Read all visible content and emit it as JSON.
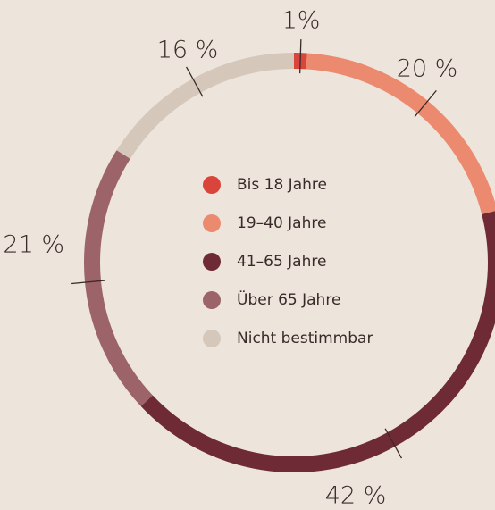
{
  "chart_data": {
    "type": "donut",
    "categories": [
      "Bis 18 Jahre",
      "19–40 Jahre",
      "41–65 Jahre",
      "Über 65 Jahre",
      "Nicht bestimmbar"
    ],
    "values": [
      1,
      20,
      42,
      21,
      16
    ],
    "value_labels": [
      "1%",
      "20 %",
      "42 %",
      "21 %",
      "16 %"
    ],
    "colors": [
      "#d9453a",
      "#ec8a6f",
      "#6e2a35",
      "#9c6468",
      "#d5c8bb"
    ]
  }
}
